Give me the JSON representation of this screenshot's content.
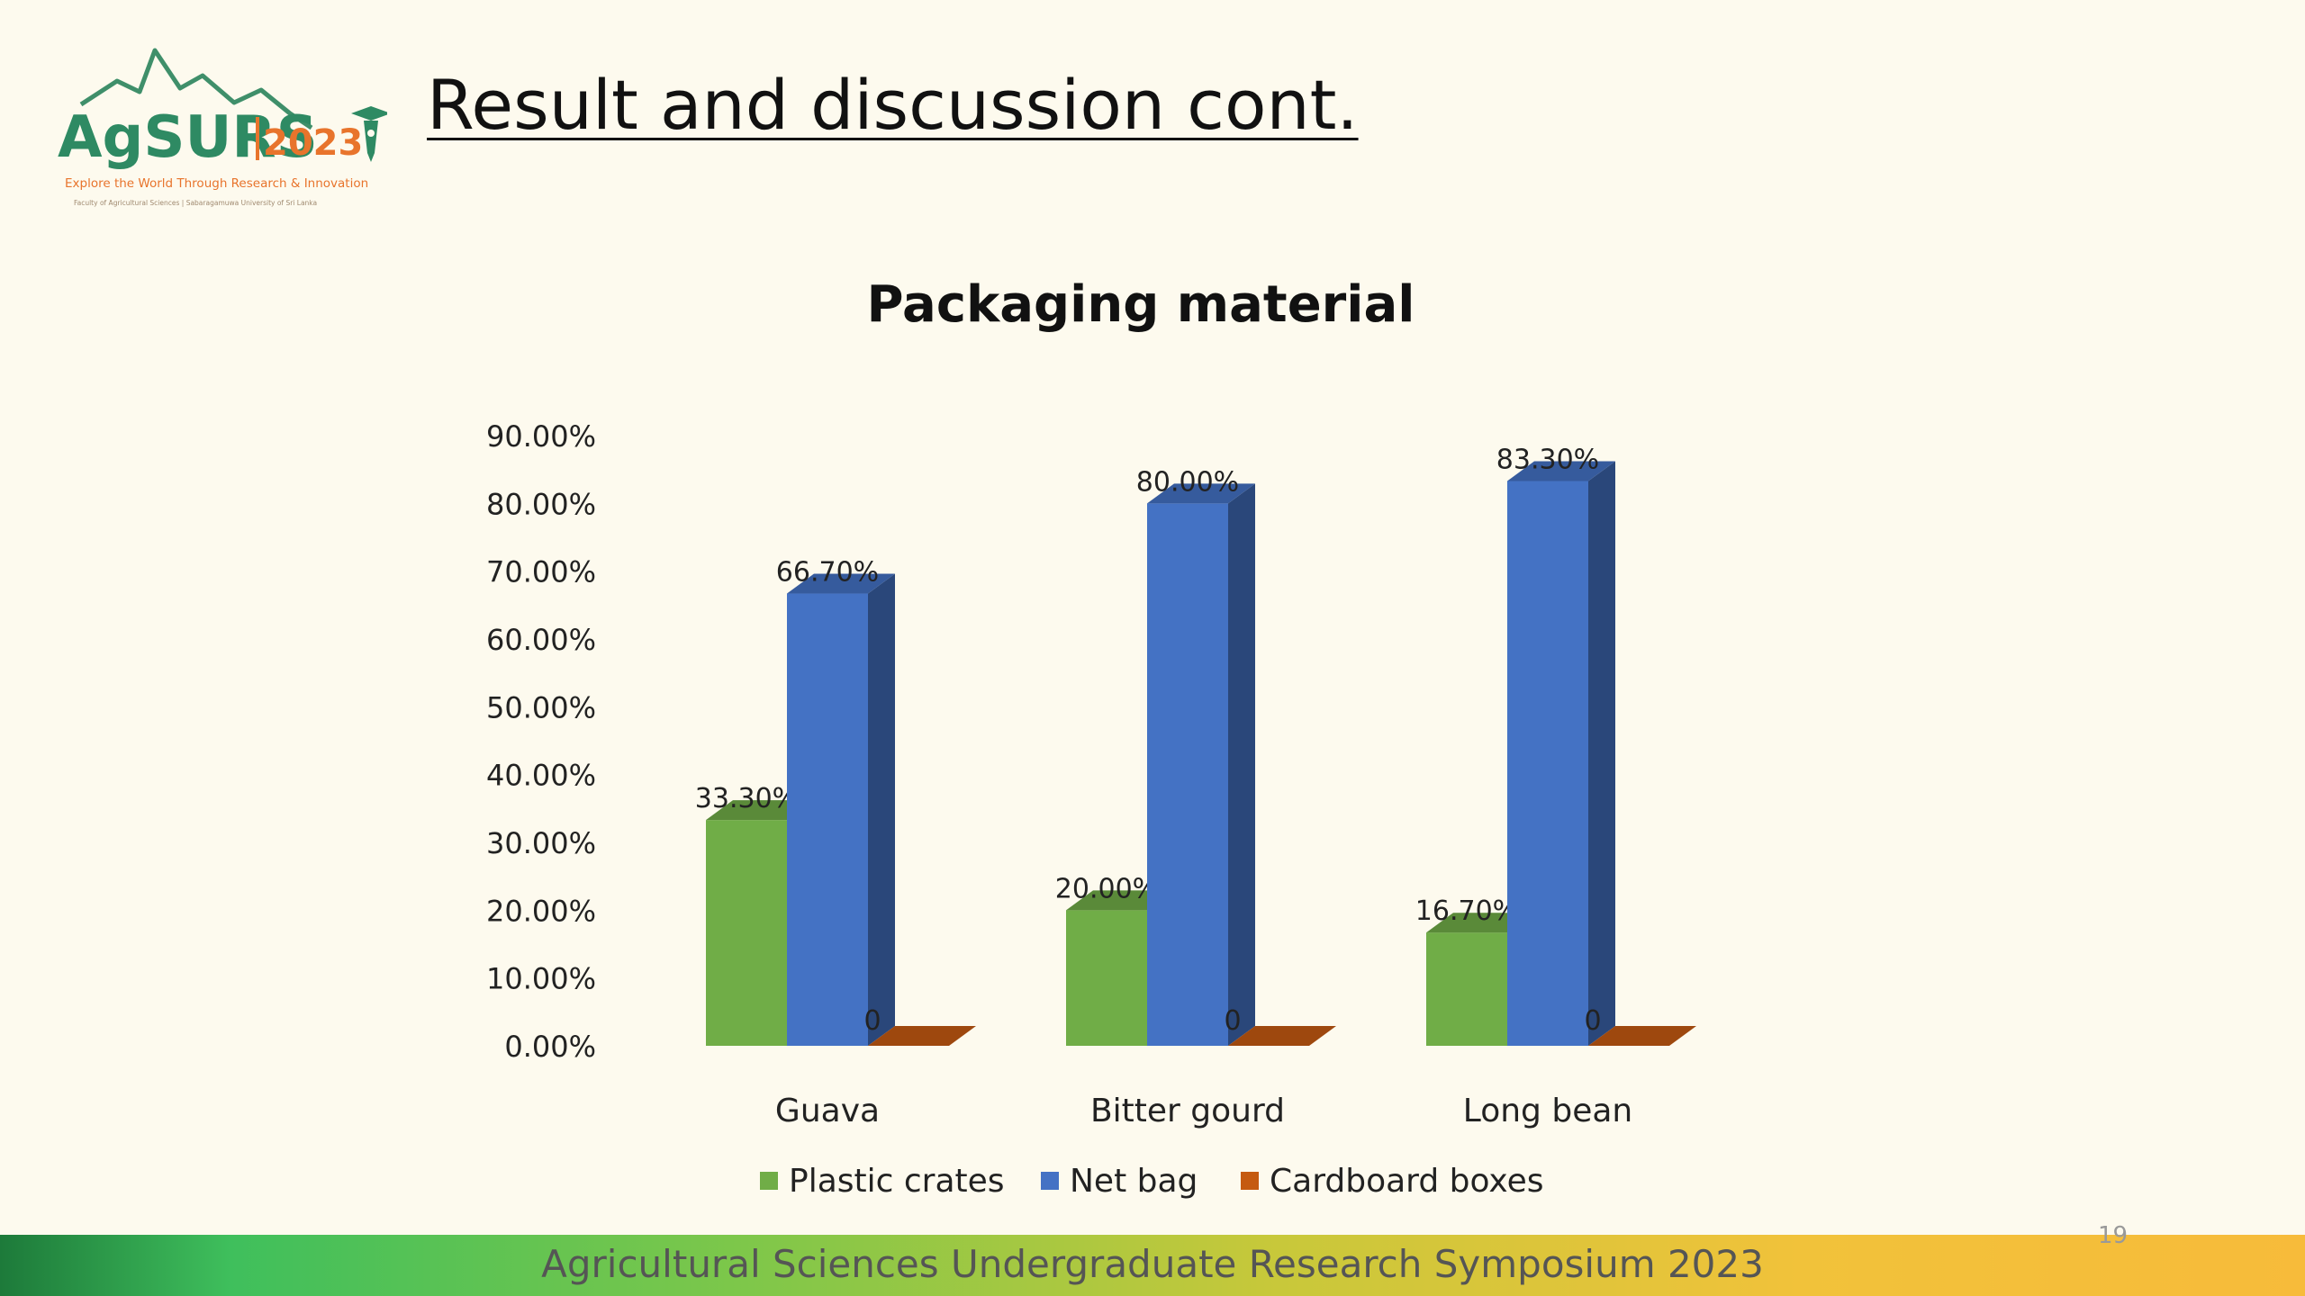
{
  "slide": {
    "title": "Result and discussion cont.",
    "page_number": "19",
    "footer": "Agricultural Sciences Undergraduate Research Symposium 2023"
  },
  "logo": {
    "name": "AgSURS",
    "year": "2023",
    "tagline": "Explore the World Through Research & Innovation",
    "subtagline": "Faculty of Agricultural Sciences | Sabaragamuwa University of Sri Lanka"
  },
  "chart_data": {
    "type": "bar",
    "title": "Packaging material",
    "categories": [
      "Guava",
      "Bitter gourd",
      "Long bean"
    ],
    "series": [
      {
        "name": "Plastic crates",
        "values": [
          33.3,
          20.0,
          16.7
        ],
        "labels": [
          "33.30%",
          "20.00%",
          "16.70%"
        ],
        "color": "#70ad47"
      },
      {
        "name": "Net bag",
        "values": [
          66.7,
          80.0,
          83.3
        ],
        "labels": [
          "66.70%",
          "80.00%",
          "83.30%"
        ],
        "color": "#4472c4"
      },
      {
        "name": "Cardboard boxes",
        "values": [
          0,
          0,
          0
        ],
        "labels": [
          "0",
          "0",
          "0"
        ],
        "color": "#c55a11"
      }
    ],
    "ylim": [
      0,
      90
    ],
    "yticks": [
      "0.00%",
      "10.00%",
      "20.00%",
      "30.00%",
      "40.00%",
      "50.00%",
      "60.00%",
      "70.00%",
      "80.00%",
      "90.00%"
    ],
    "legend": "bottom",
    "grid": false,
    "style": "3d-clustered-columns"
  }
}
